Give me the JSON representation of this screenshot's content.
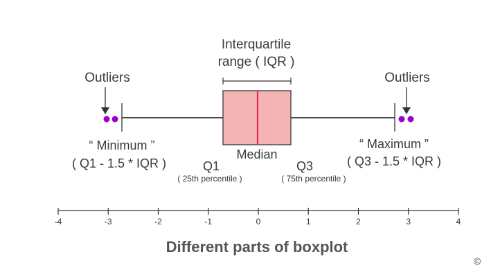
{
  "diagram": {
    "title": "Different parts of boxplot",
    "iqr_label_line1": "Interquartile",
    "iqr_label_line2": "range ( IQR )",
    "outliers_left_label": "Outliers",
    "outliers_right_label": "Outliers",
    "minimum_label": "“ Minimum ”",
    "minimum_formula": "( Q1 - 1.5 * IQR )",
    "maximum_label": "“ Maximum ”",
    "maximum_formula": "( Q3 - 1.5 * IQR )",
    "median_label": "Median",
    "q1_label": "Q1",
    "q1_sub": "( 25th percentile )",
    "q3_label": "Q3",
    "q3_sub": "( 75th percentile )",
    "copyright": "©",
    "axis_ticks": [
      "-4",
      "-3",
      "-2",
      "-1",
      "0",
      "1",
      "2",
      "3",
      "4"
    ],
    "colors": {
      "box_fill": "#f4b4b6",
      "box_stroke": "#3a3a3a",
      "median_line": "#e0245e",
      "outlier": "#9900cc",
      "whisker": "#333333"
    }
  }
}
